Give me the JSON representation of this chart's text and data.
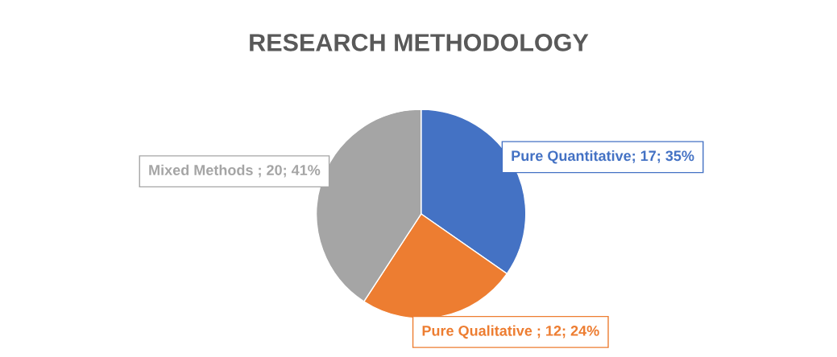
{
  "chart_data": {
    "type": "pie",
    "title": "RESEARCH METHODOLOGY",
    "categories": [
      "Pure Quantitative",
      "Pure Qualitative",
      "Mixed Methods"
    ],
    "values": [
      17,
      12,
      20
    ],
    "colors": [
      "#4472c4",
      "#ed7d31",
      "#a5a5a5"
    ],
    "value_labels": [
      "; 17; 35%",
      " ; 12; 24%",
      " ; 20; 41%"
    ]
  }
}
